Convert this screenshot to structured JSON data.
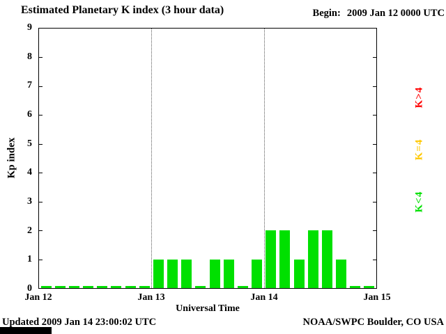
{
  "header": {
    "title": "Estimated Planetary K index (3 hour data)",
    "begin_label": "Begin:",
    "begin_value": "2009 Jan 12 0000 UTC"
  },
  "footer": {
    "updated": "Updated 2009 Jan 14 23:00:02 UTC",
    "source": "NOAA/SWPC Boulder, CO USA"
  },
  "chart_data": {
    "type": "bar",
    "title": "Estimated Planetary K index (3 hour data)",
    "xlabel": "Universal Time",
    "ylabel": "Kp index",
    "ylim": [
      0,
      9
    ],
    "y_ticks": [
      0,
      1,
      2,
      3,
      4,
      5,
      6,
      7,
      8,
      9
    ],
    "x_tick_labels": [
      "Jan 12",
      "Jan 13",
      "Jan 14",
      "Jan 15"
    ],
    "interval_hours": 3,
    "bars_per_day": 8,
    "days": [
      {
        "date": "Jan 12",
        "values": [
          0,
          0,
          0,
          0,
          0,
          0,
          0,
          0
        ]
      },
      {
        "date": "Jan 13",
        "values": [
          1,
          1,
          1,
          0,
          1,
          1,
          0,
          1
        ]
      },
      {
        "date": "Jan 14",
        "values": [
          2,
          2,
          1,
          2,
          2,
          1,
          0,
          0
        ]
      }
    ],
    "colors": {
      "k_lt_4": "#00e000",
      "k_eq_4": "#ffc800",
      "k_gt_4": "#ff0000"
    },
    "legend": [
      {
        "label": "K>4",
        "color_key": "k_gt_4"
      },
      {
        "label": "K=4",
        "color_key": "k_eq_4"
      },
      {
        "label": "K<4",
        "color_key": "k_lt_4"
      }
    ],
    "reference_lines_x": [
      "Jan 13",
      "Jan 14"
    ],
    "grid": false,
    "legend_position": "right-rotated"
  }
}
